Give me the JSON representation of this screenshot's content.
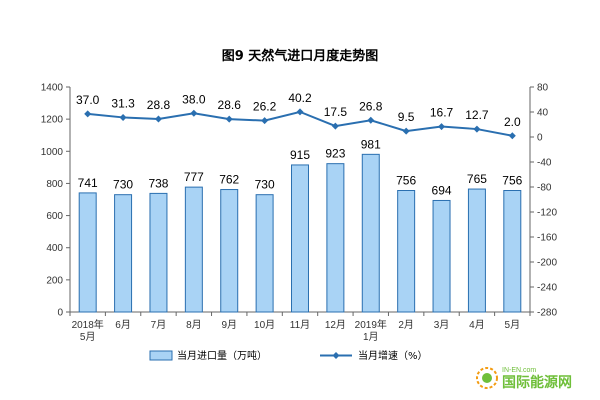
{
  "chart_data": {
    "type": "bar+line",
    "title": "图9 天然气进口月度走势图",
    "categories": [
      [
        "2018年",
        "5月"
      ],
      [
        "6月"
      ],
      [
        "7月"
      ],
      [
        "8月"
      ],
      [
        "9月"
      ],
      [
        "10月"
      ],
      [
        "11月"
      ],
      [
        "12月"
      ],
      [
        "2019年",
        "1月"
      ],
      [
        "2月"
      ],
      [
        "3月"
      ],
      [
        "4月"
      ],
      [
        "5月"
      ]
    ],
    "series": [
      {
        "name": "当月进口量（万吨）",
        "type": "bar",
        "axis": "left",
        "values": [
          741,
          730,
          738,
          777,
          762,
          730,
          915,
          923,
          981,
          756,
          694,
          765,
          756
        ],
        "labels": [
          "741",
          "730",
          "738",
          "777",
          "762",
          "730",
          "915",
          "923",
          "981",
          "756",
          "694",
          "765",
          "756"
        ],
        "color": "#a9d3f5",
        "edge_color": "#2a6fb0"
      },
      {
        "name": "当月增速（%）",
        "type": "line",
        "axis": "right",
        "values": [
          37.0,
          31.3,
          28.8,
          38.0,
          28.6,
          26.2,
          40.2,
          17.5,
          26.8,
          9.5,
          16.7,
          12.7,
          2.0
        ],
        "labels": [
          "37.0",
          "31.3",
          "28.8",
          "38.0",
          "28.6",
          "26.2",
          "40.2",
          "17.5",
          "26.8",
          "9.5",
          "16.7",
          "12.7",
          "2.0"
        ],
        "color": "#2a6fb0"
      }
    ],
    "left_axis": {
      "ylim": [
        0,
        1400
      ],
      "ticks": [
        0,
        200,
        400,
        600,
        800,
        1000,
        1200,
        1400
      ],
      "tick_labels": [
        "0",
        "200",
        "400",
        "600",
        "800",
        "1000",
        "1200",
        "1400"
      ]
    },
    "right_axis": {
      "ylim": [
        -280,
        80
      ],
      "ticks": [
        80,
        40,
        0,
        -40,
        -80,
        -120,
        -160,
        -200,
        -240,
        -280
      ],
      "tick_labels": [
        "80",
        "40",
        "0",
        "-40",
        "-80",
        "-120",
        "-160",
        "-200",
        "-240",
        "-280"
      ]
    },
    "grid": false,
    "legend_position": "bottom-center"
  },
  "watermark": {
    "domain": "IN-EN.com",
    "name": "国际能源网"
  }
}
